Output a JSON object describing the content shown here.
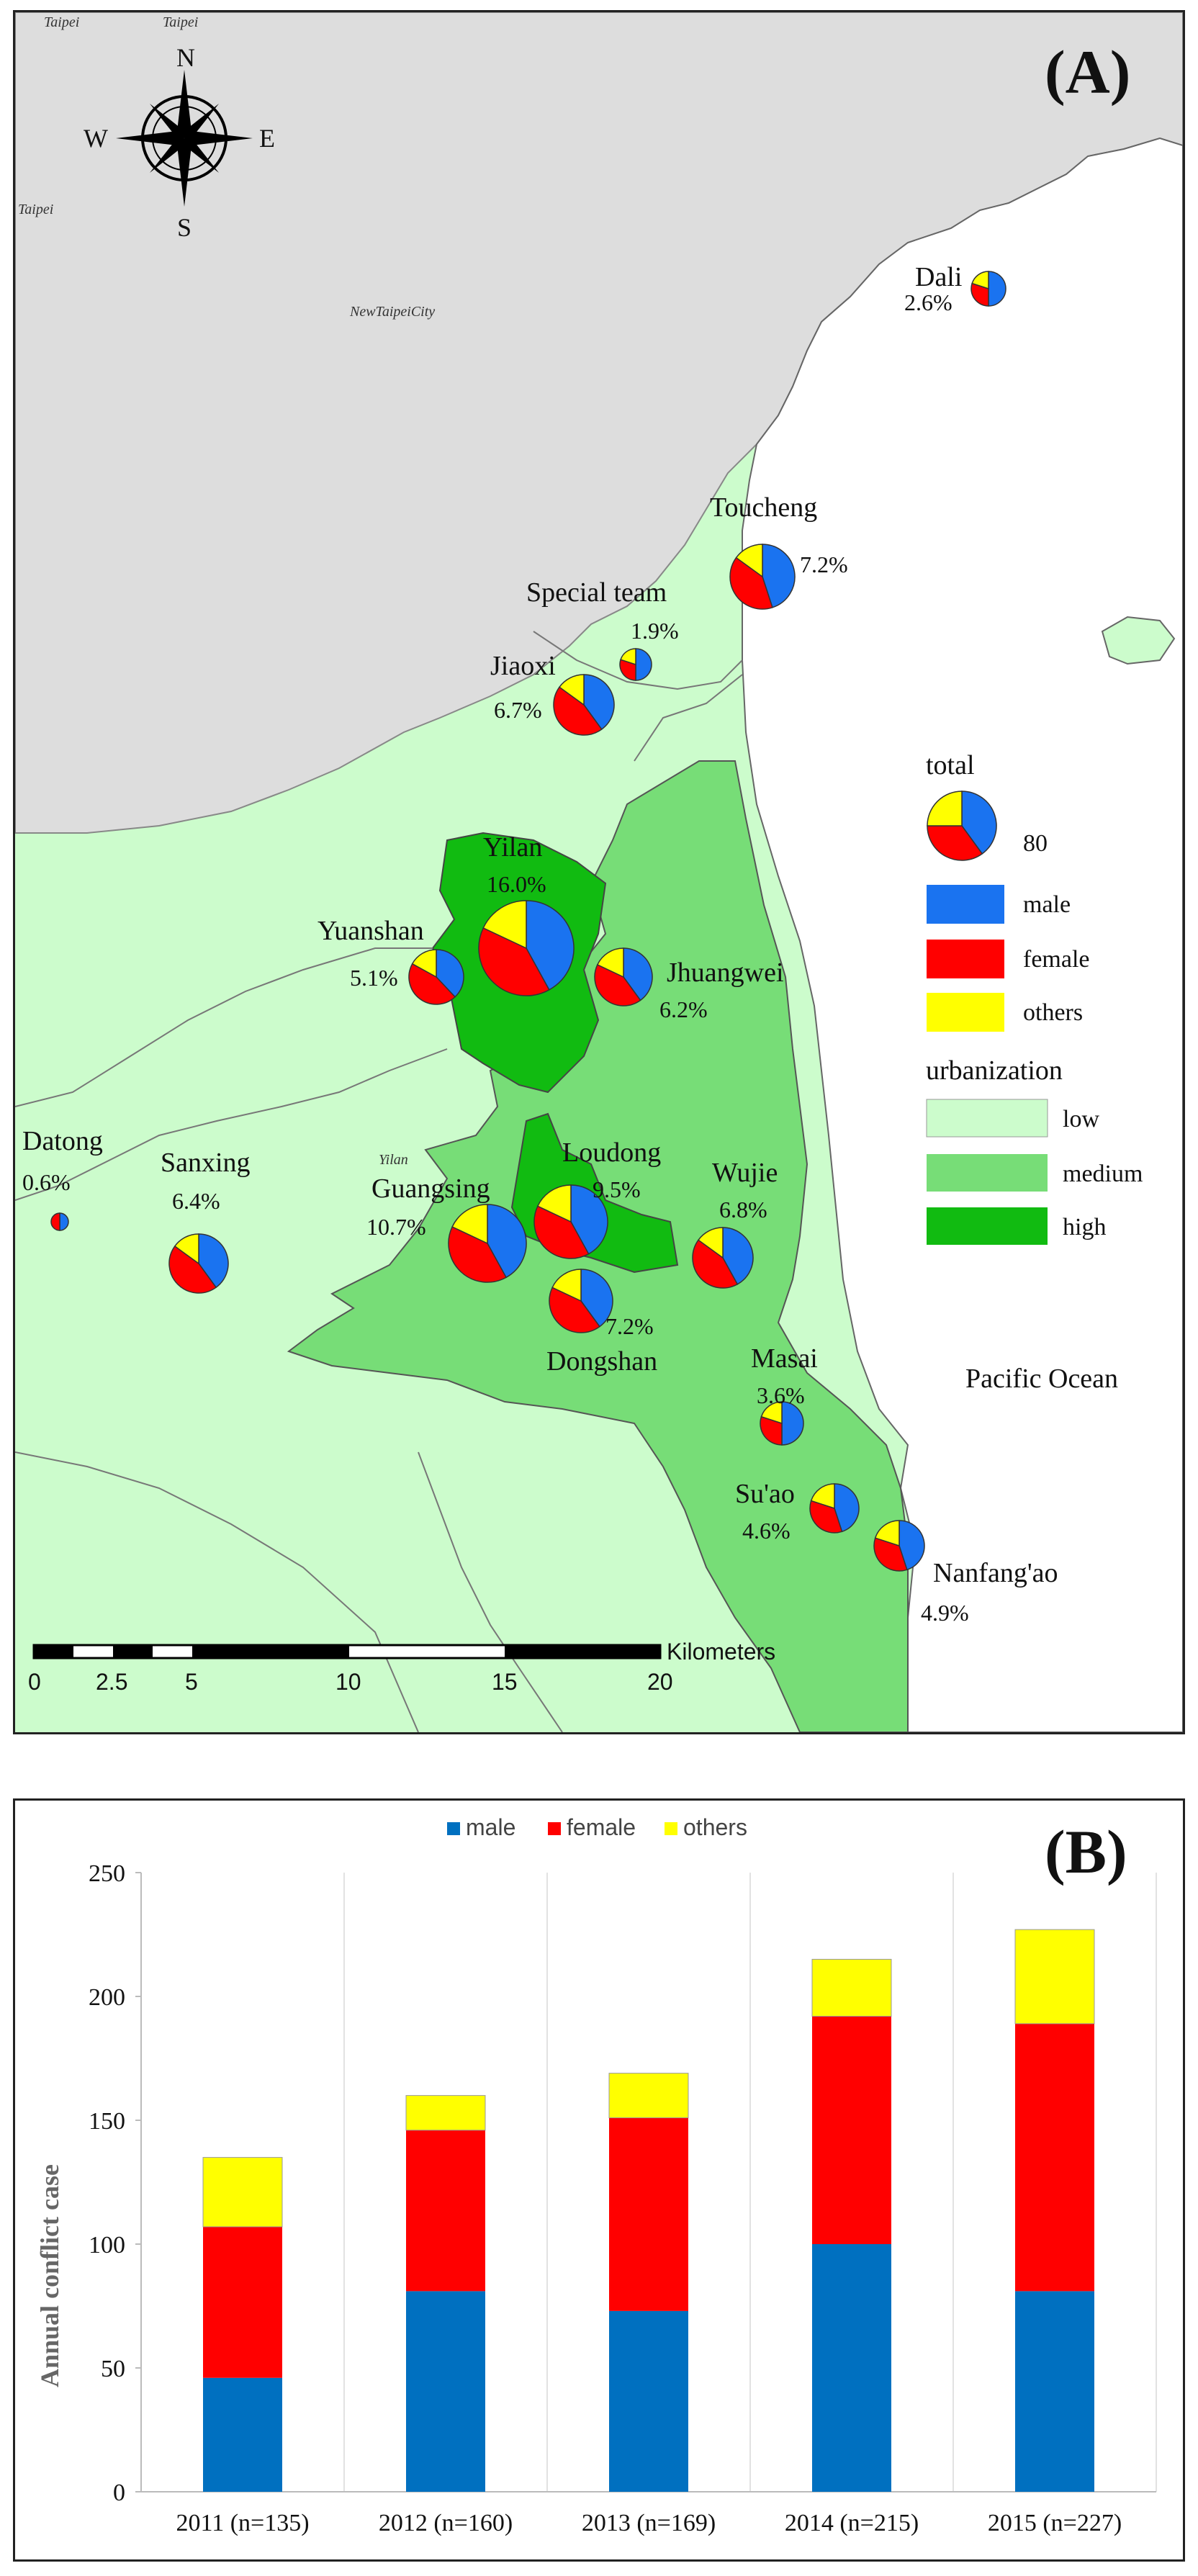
{
  "panel_a": {
    "tag": "(A)",
    "compass": {
      "n": "N",
      "s": "S",
      "e": "E",
      "w": "W"
    },
    "context_labels": [
      "Taipei",
      "Taipei",
      "Taipei",
      "NewTaipeiCity",
      "Yilan"
    ],
    "ocean_label": "Pacific Ocean",
    "legend": {
      "total_title": "total",
      "total_value": "80",
      "male": "male",
      "female": "female",
      "others": "others",
      "urbanization_title": "urbanization",
      "low": "low",
      "medium": "medium",
      "high": "high"
    },
    "colors": {
      "male": "#1a73f0",
      "female": "#ff0000",
      "others": "#ffff00",
      "urban_low": "#ccfccc",
      "urban_medium": "#77dd77",
      "urban_high": "#11bb11",
      "outside": "#dddddd"
    },
    "scale_bar": {
      "unit": "Kilometers",
      "ticks": [
        "0",
        "2.5",
        "5",
        "10",
        "15",
        "20"
      ]
    },
    "stations": [
      {
        "name": "Dali",
        "pct": "2.6%",
        "share": [
          0.5,
          0.3,
          0.2
        ]
      },
      {
        "name": "Toucheng",
        "pct": "7.2%",
        "share": [
          0.45,
          0.4,
          0.15
        ]
      },
      {
        "name": "Special team",
        "pct": "1.9%",
        "share": [
          0.5,
          0.3,
          0.2
        ]
      },
      {
        "name": "Jiaoxi",
        "pct": "6.7%",
        "share": [
          0.4,
          0.45,
          0.15
        ]
      },
      {
        "name": "Yilan",
        "pct": "16.0%",
        "share": [
          0.42,
          0.4,
          0.18
        ]
      },
      {
        "name": "Yuanshan",
        "pct": "5.1%",
        "share": [
          0.38,
          0.45,
          0.17
        ]
      },
      {
        "name": "Jhuangwei",
        "pct": "6.2%",
        "share": [
          0.4,
          0.42,
          0.18
        ]
      },
      {
        "name": "Datong",
        "pct": "0.6%",
        "share": [
          0.5,
          0.5,
          0.0
        ]
      },
      {
        "name": "Sanxing",
        "pct": "6.4%",
        "share": [
          0.4,
          0.45,
          0.15
        ]
      },
      {
        "name": "Guangsing",
        "pct": "10.7%",
        "share": [
          0.42,
          0.4,
          0.18
        ]
      },
      {
        "name": "Loudong",
        "pct": "9.5%",
        "share": [
          0.42,
          0.4,
          0.18
        ]
      },
      {
        "name": "Wujie",
        "pct": "6.8%",
        "share": [
          0.42,
          0.43,
          0.15
        ]
      },
      {
        "name": "Dongshan",
        "pct": "7.2%",
        "share": [
          0.4,
          0.42,
          0.18
        ]
      },
      {
        "name": "Masai",
        "pct": "3.6%",
        "share": [
          0.5,
          0.3,
          0.2
        ]
      },
      {
        "name": "Su'ao",
        "pct": "4.6%",
        "share": [
          0.45,
          0.35,
          0.2
        ]
      },
      {
        "name": "Nanfang'ao",
        "pct": "4.9%",
        "share": [
          0.45,
          0.35,
          0.2
        ]
      }
    ]
  },
  "chart_data": {
    "type": "bar",
    "stacked": true,
    "tag": "(B)",
    "categories": [
      "2011 (n=135)",
      "2012 (n=160)",
      "2013 (n=169)",
      "2014 (n=215)",
      "2015 (n=227)"
    ],
    "series": [
      {
        "name": "male",
        "color": "#0070c0",
        "values": [
          46,
          81,
          73,
          100,
          81
        ]
      },
      {
        "name": "female",
        "color": "#ff0000",
        "values": [
          61,
          65,
          78,
          92,
          108
        ]
      },
      {
        "name": "others",
        "color": "#ffff00",
        "values": [
          28,
          14,
          18,
          23,
          38
        ]
      }
    ],
    "ylabel": "Annual conflict case",
    "ylim": [
      0,
      250
    ],
    "yticks": [
      0,
      50,
      100,
      150,
      200,
      250
    ],
    "grid": "vertical",
    "legend": "top-center"
  }
}
